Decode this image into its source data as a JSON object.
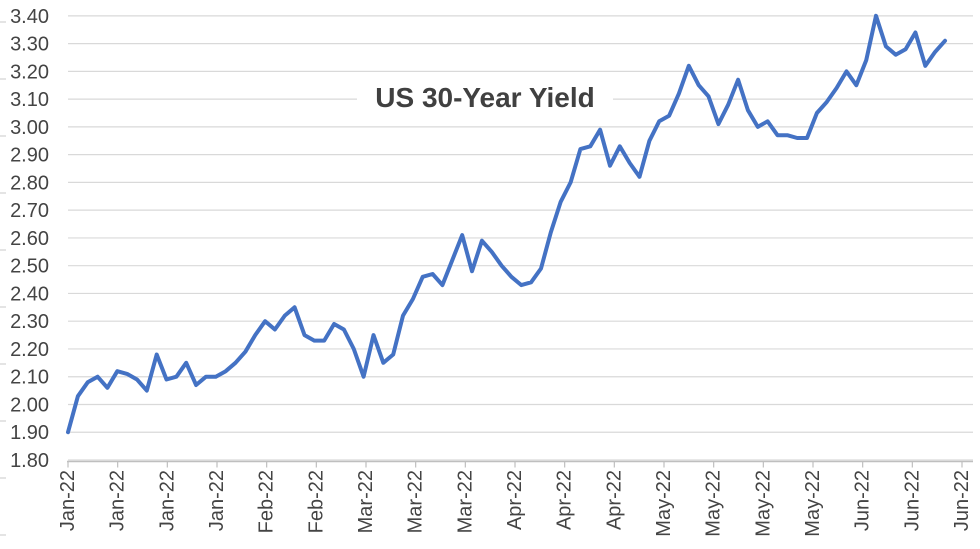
{
  "chart_data": {
    "type": "line",
    "title": "US 30-Year Yield",
    "xlabel": "",
    "ylabel": "",
    "ylim": [
      1.8,
      3.4
    ],
    "y_tick_step": 0.1,
    "grid": true,
    "legend": "none",
    "y_tick_labels": [
      "3.40",
      "3.30",
      "3.20",
      "3.10",
      "3.00",
      "2.90",
      "2.80",
      "2.70",
      "2.60",
      "2.50",
      "2.40",
      "2.30",
      "2.20",
      "2.10",
      "2.00",
      "1.90",
      "1.80"
    ],
    "x_tick_labels": [
      "Jan-22",
      "Jan-22",
      "Jan-22",
      "Jan-22",
      "Feb-22",
      "Feb-22",
      "Mar-22",
      "Mar-22",
      "Mar-22",
      "Apr-22",
      "Apr-22",
      "Apr-22",
      "May-22",
      "May-22",
      "May-22",
      "May-22",
      "Jun-22",
      "Jun-22",
      "Jun-22"
    ],
    "series": [
      {
        "name": "US 30-Year Yield",
        "values": [
          1.9,
          2.03,
          2.08,
          2.1,
          2.06,
          2.12,
          2.11,
          2.09,
          2.05,
          2.18,
          2.09,
          2.1,
          2.15,
          2.07,
          2.1,
          2.1,
          2.12,
          2.15,
          2.19,
          2.25,
          2.3,
          2.27,
          2.32,
          2.35,
          2.25,
          2.23,
          2.23,
          2.29,
          2.27,
          2.2,
          2.1,
          2.25,
          2.15,
          2.18,
          2.32,
          2.38,
          2.46,
          2.47,
          2.43,
          2.52,
          2.61,
          2.48,
          2.59,
          2.55,
          2.5,
          2.46,
          2.43,
          2.44,
          2.49,
          2.62,
          2.73,
          2.8,
          2.92,
          2.93,
          2.99,
          2.86,
          2.93,
          2.87,
          2.82,
          2.95,
          3.02,
          3.04,
          3.12,
          3.22,
          3.15,
          3.11,
          3.01,
          3.08,
          3.17,
          3.06,
          3.0,
          3.02,
          2.97,
          2.97,
          2.96,
          2.96,
          3.05,
          3.09,
          3.14,
          3.2,
          3.15,
          3.24,
          3.4,
          3.29,
          3.26,
          3.28,
          3.34,
          3.22,
          3.27,
          3.31
        ]
      }
    ],
    "colors": {
      "line": "#4472C4",
      "gridline": "#D9D9D9",
      "axis": "#BFBFBF",
      "tick_label": "#444444",
      "title": "#404040"
    }
  }
}
